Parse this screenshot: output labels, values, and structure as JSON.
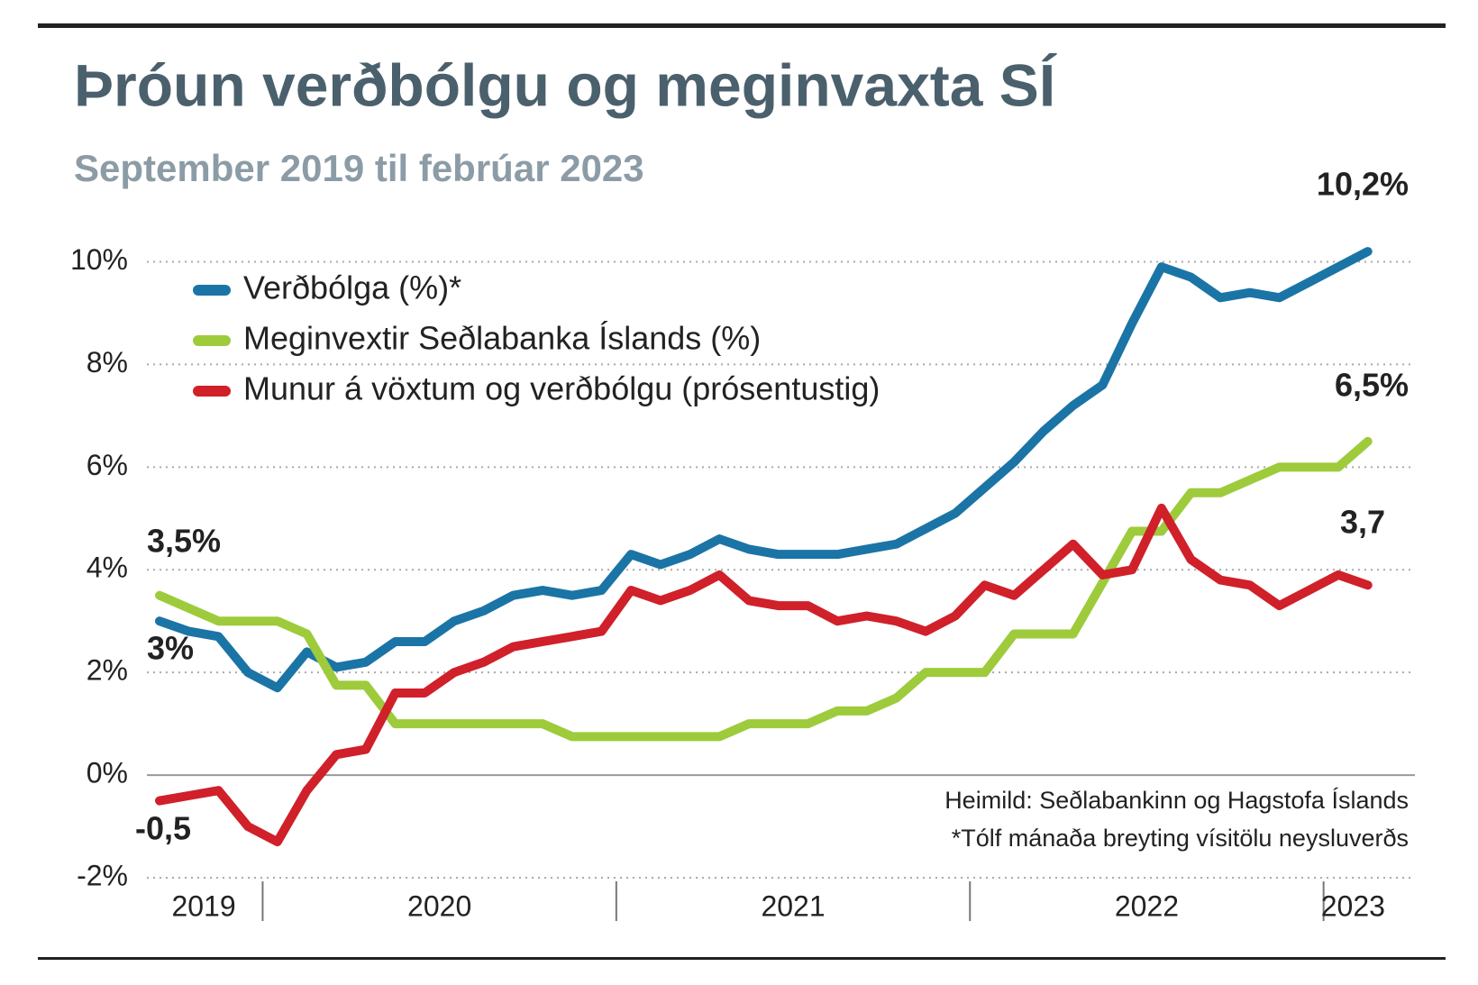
{
  "chart_data": {
    "type": "line",
    "title": "Þróun verðbólgu og meginvaxta SÍ",
    "subtitle": "September 2019 til febrúar 2023",
    "categories": [
      null,
      null,
      null,
      null,
      null,
      null,
      null,
      null,
      null,
      null,
      null,
      null,
      null,
      null,
      null,
      null,
      null,
      null,
      null,
      null,
      null,
      null,
      null,
      null,
      null,
      null,
      null,
      null,
      null,
      null,
      null,
      null,
      null,
      null,
      null,
      null,
      null,
      null,
      null,
      null,
      null,
      null
    ],
    "year_labels": [
      "2019",
      "2020",
      "2021",
      "2022",
      "2023"
    ],
    "series": [
      {
        "name": "Verðbólga (%)*",
        "color": "#1b74a6",
        "values": [
          3.0,
          2.8,
          2.7,
          2.0,
          1.7,
          2.4,
          2.1,
          2.2,
          2.6,
          2.6,
          3.0,
          3.2,
          3.5,
          3.6,
          3.5,
          3.6,
          4.3,
          4.1,
          4.3,
          4.6,
          4.4,
          4.3,
          4.3,
          4.3,
          4.4,
          4.5,
          4.8,
          5.1,
          5.6,
          6.1,
          6.7,
          7.2,
          7.6,
          8.8,
          9.9,
          9.7,
          9.3,
          9.4,
          9.3,
          9.6,
          9.9,
          10.2
        ]
      },
      {
        "name": "Meginvextir Seðlabanka Íslands (%)",
        "color": "#9dcb3b",
        "values": [
          3.5,
          3.25,
          3.0,
          3.0,
          3.0,
          2.75,
          1.75,
          1.75,
          1.0,
          1.0,
          1.0,
          1.0,
          1.0,
          1.0,
          0.75,
          0.75,
          0.75,
          0.75,
          0.75,
          0.75,
          1.0,
          1.0,
          1.0,
          1.25,
          1.25,
          1.5,
          2.0,
          2.0,
          2.0,
          2.75,
          2.75,
          2.75,
          3.75,
          4.75,
          4.75,
          5.5,
          5.5,
          5.75,
          6.0,
          6.0,
          6.0,
          6.5
        ]
      },
      {
        "name": "Munur á vöxtum og verðbólgu (prósentustig)",
        "color": "#d0202a",
        "values": [
          -0.5,
          -0.4,
          -0.3,
          -1.0,
          -1.3,
          -0.3,
          0.4,
          0.5,
          1.6,
          1.6,
          2.0,
          2.2,
          2.5,
          2.6,
          2.7,
          2.8,
          3.6,
          3.4,
          3.6,
          3.9,
          3.4,
          3.3,
          3.3,
          3.0,
          3.1,
          3.0,
          2.8,
          3.1,
          3.7,
          3.5,
          4.0,
          4.5,
          3.9,
          4.0,
          5.2,
          4.2,
          3.8,
          3.7,
          3.3,
          3.6,
          3.9,
          3.7
        ]
      }
    ],
    "annotations": [
      "10,2%",
      "6,5%",
      "3,7",
      "3,5%",
      "3%",
      "-0,5"
    ],
    "notes": [
      "Heimild: Seðlabankinn og Hagstofa Íslands",
      "*Tólf mánaða breyting vísitölu neysluverðs"
    ],
    "ylim": [
      -2,
      10.5
    ],
    "yticks": [
      {
        "value": -2,
        "label": "-2%"
      },
      {
        "value": 0,
        "label": "0%"
      },
      {
        "value": 2,
        "label": "2%"
      },
      {
        "value": 4,
        "label": "4%"
      },
      {
        "value": 6,
        "label": "6%"
      },
      {
        "value": 8,
        "label": "8%"
      },
      {
        "value": 10,
        "label": "10%"
      }
    ],
    "grid": true
  }
}
